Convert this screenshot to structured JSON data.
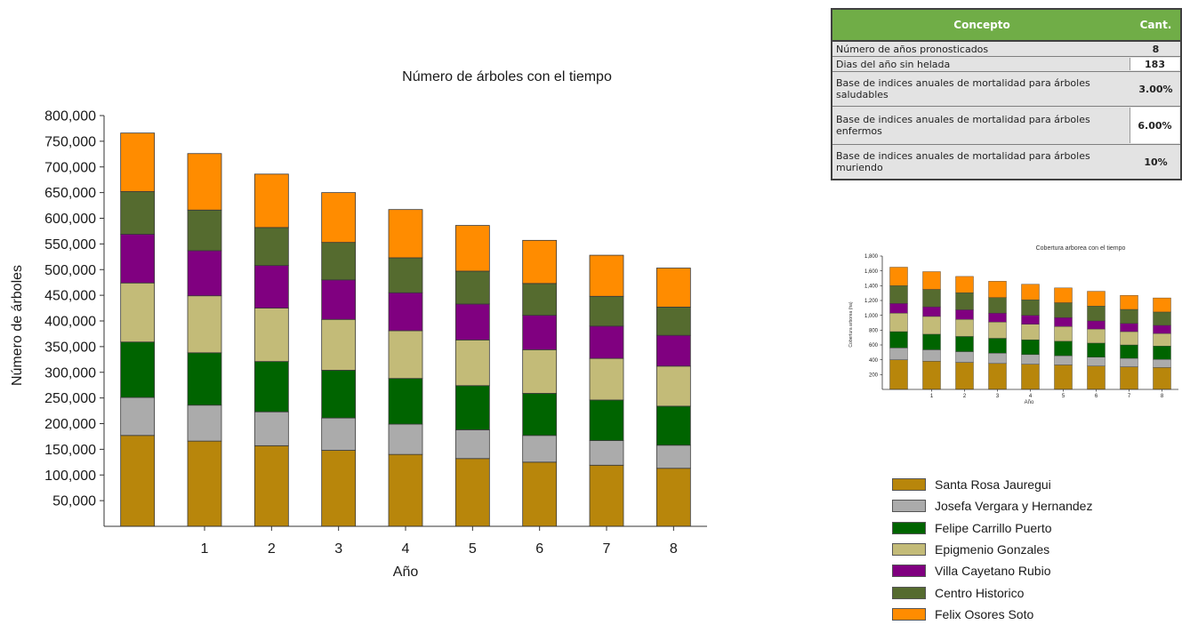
{
  "colors": {
    "Santa Rosa Jauregui": "#b8860b",
    "Josefa Vergara y Hernandez": "#ababab",
    "Felipe Carrillo Puerto": "#006400",
    "Epigmenio Gonzales": "#c3bb78",
    "Villa Cayetano Rubio": "#800080",
    "Centro Historico": "#556b2f",
    "Felix Osores Soto": "#ff8c00"
  },
  "chart_data": [
    {
      "type": "bar",
      "stacked": true,
      "title": "Número de árboles con el tiempo",
      "xlabel": "Año",
      "ylabel": "Número de árboles",
      "categories": [
        "",
        "1",
        "2",
        "3",
        "4",
        "5",
        "6",
        "7",
        "8"
      ],
      "ylim": [
        0,
        800000
      ],
      "yticks": [
        "50,000",
        "100,000",
        "150,000",
        "200,000",
        "250,000",
        "300,000",
        "350,000",
        "400,000",
        "450,000",
        "500,000",
        "550,000",
        "600,000",
        "650,000",
        "700,000",
        "750,000",
        "800,000"
      ],
      "grid": false,
      "series": [
        {
          "name": "Santa Rosa Jauregui",
          "values": [
            177000,
            166000,
            157000,
            148000,
            140000,
            132000,
            125000,
            119000,
            113000
          ]
        },
        {
          "name": "Josefa Vergara y Hernandez",
          "values": [
            74000,
            70000,
            66000,
            63000,
            59000,
            56000,
            52000,
            48000,
            45000
          ]
        },
        {
          "name": "Felipe Carrillo Puerto",
          "values": [
            108000,
            102000,
            98000,
            93000,
            89000,
            86000,
            82000,
            79000,
            76000
          ]
        },
        {
          "name": "Epigmenio Gonzales",
          "values": [
            115000,
            111000,
            104000,
            99000,
            93000,
            89000,
            85000,
            81000,
            78000
          ]
        },
        {
          "name": "Villa Cayetano Rubio",
          "values": [
            95000,
            88000,
            83000,
            77000,
            74000,
            70000,
            67000,
            63000,
            60000
          ]
        },
        {
          "name": "Centro Historico",
          "values": [
            83000,
            79000,
            74000,
            73000,
            68000,
            64000,
            62000,
            58000,
            55000
          ]
        },
        {
          "name": "Felix Osores Soto",
          "values": [
            114000,
            110000,
            104000,
            97000,
            94000,
            89000,
            84000,
            80000,
            76000
          ]
        }
      ]
    },
    {
      "type": "bar",
      "stacked": true,
      "title": "Cobertura arborea con el tiempo",
      "xlabel": "Año",
      "ylabel": "Cobertura arborea (ha)",
      "categories": [
        "",
        "1",
        "2",
        "3",
        "4",
        "5",
        "6",
        "7",
        "8"
      ],
      "ylim": [
        0,
        1800
      ],
      "yticks": [
        "200",
        "400",
        "600",
        "800",
        "1,000",
        "1,200",
        "1,400",
        "1,600",
        "1,800"
      ],
      "series": [
        {
          "name": "Santa Rosa Jauregui",
          "values": [
            400,
            380,
            365,
            350,
            340,
            330,
            315,
            305,
            295
          ]
        },
        {
          "name": "Josefa Vergara y Hernandez",
          "values": [
            160,
            155,
            145,
            140,
            130,
            125,
            120,
            115,
            110
          ]
        },
        {
          "name": "Felipe Carrillo Puerto",
          "values": [
            220,
            210,
            205,
            200,
            200,
            195,
            190,
            180,
            180
          ]
        },
        {
          "name": "Epigmenio Gonzales",
          "values": [
            250,
            240,
            230,
            220,
            210,
            200,
            190,
            180,
            170
          ]
        },
        {
          "name": "Villa Cayetano Rubio",
          "values": [
            130,
            130,
            130,
            120,
            120,
            120,
            110,
            110,
            110
          ]
        },
        {
          "name": "Centro Historico",
          "values": [
            240,
            235,
            230,
            210,
            210,
            200,
            200,
            190,
            180
          ]
        },
        {
          "name": "Felix Osores Soto",
          "values": [
            250,
            240,
            220,
            220,
            210,
            200,
            200,
            190,
            190
          ]
        }
      ]
    }
  ],
  "table": {
    "headers": [
      "Concepto",
      "Cant."
    ],
    "rows": [
      {
        "concept": "Número de años pronosticados",
        "value": "8"
      },
      {
        "concept": "Dias del año sin helada",
        "value": "183"
      },
      {
        "concept": "Base de indices anuales de mortalidad para árboles saludables",
        "value": "3.00%"
      },
      {
        "concept": "Base de indices anuales de mortalidad para árboles enfermos",
        "value": "6.00%"
      },
      {
        "concept": "Base de indices anuales de mortalidad para árboles muriendo",
        "value": "10%"
      }
    ]
  },
  "legend": [
    "Santa Rosa Jauregui",
    "Josefa Vergara y Hernandez",
    "Felipe Carrillo Puerto",
    "Epigmenio Gonzales",
    "Villa Cayetano Rubio",
    "Centro Historico",
    "Felix Osores Soto"
  ]
}
